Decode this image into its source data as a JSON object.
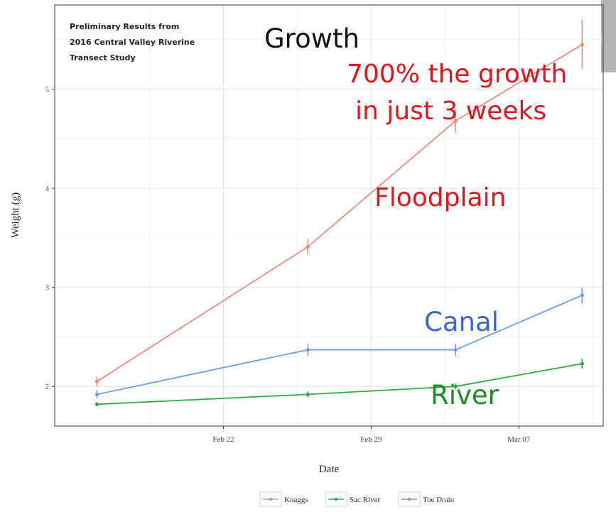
{
  "chart_data": {
    "type": "line",
    "title": "",
    "note_lines": [
      "Preliminary Results from",
      "2016 Central Valley Riverine",
      "Transect Study"
    ],
    "xlabel": "Date",
    "ylabel": "Weight (g)",
    "x_dates": [
      "2016-02-16",
      "2016-02-26",
      "2016-03-04",
      "2016-03-10"
    ],
    "x_ticks": [
      {
        "date": "2016-02-22",
        "label": "Feb 22"
      },
      {
        "date": "2016-02-29",
        "label": "Feb 29"
      },
      {
        "date": "2016-03-07",
        "label": "Mar 07"
      }
    ],
    "xlim": [
      "2016-02-14",
      "2016-03-11"
    ],
    "y_ticks": [
      2,
      3,
      4,
      5
    ],
    "ylim": [
      1.6,
      5.85
    ],
    "grid": true,
    "legend_position": "bottom",
    "series": [
      {
        "name": "Knaggs",
        "color": "#f08a78",
        "values": [
          2.05,
          3.41,
          4.68,
          5.45
        ],
        "errors": [
          0.05,
          0.08,
          0.12,
          0.25
        ]
      },
      {
        "name": "Sac River",
        "color": "#2eaa45",
        "values": [
          1.82,
          1.92,
          2.0,
          2.23
        ],
        "errors": [
          0.02,
          0.03,
          0.03,
          0.05
        ]
      },
      {
        "name": "Toe Drain",
        "color": "#6e9ce6",
        "values": [
          1.92,
          2.37,
          2.37,
          2.92
        ],
        "errors": [
          0.04,
          0.06,
          0.06,
          0.08
        ]
      }
    ],
    "annotations": [
      {
        "text": "Growth",
        "color": "#111111"
      },
      {
        "text": "700% the growth",
        "color": "#e0161e"
      },
      {
        "text": "in just 3 weeks",
        "color": "#e0161e"
      },
      {
        "text": "Floodplain",
        "color": "#e0161e"
      },
      {
        "text": "Canal",
        "color": "#3a63d8"
      },
      {
        "text": "River",
        "color": "#1f8a2a"
      }
    ]
  }
}
